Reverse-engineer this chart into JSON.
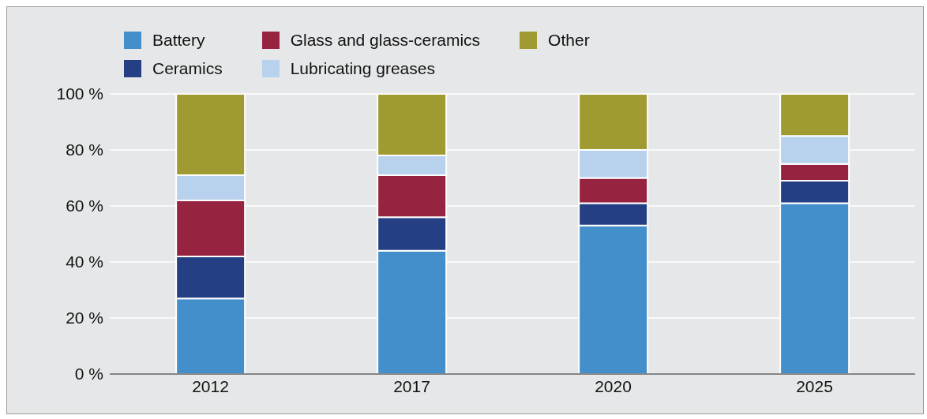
{
  "chart_data": {
    "type": "bar",
    "stacked": true,
    "categories": [
      "2012",
      "2017",
      "2020",
      "2025"
    ],
    "series": [
      {
        "name": "Battery",
        "color": "#438fcb",
        "values": [
          27,
          44,
          53,
          61
        ]
      },
      {
        "name": "Ceramics",
        "color": "#253f85",
        "values": [
          15,
          12,
          8,
          8
        ]
      },
      {
        "name": "Glass and glass-ceramics",
        "color": "#962340",
        "values": [
          20,
          15,
          9,
          6
        ]
      },
      {
        "name": "Lubricating greases",
        "color": "#b8d1ec",
        "values": [
          9,
          7,
          10,
          10
        ]
      },
      {
        "name": "Other",
        "color": "#a09a32",
        "values": [
          29,
          22,
          20,
          15
        ]
      }
    ],
    "ylim": [
      0,
      100
    ],
    "yticks": [
      {
        "value": 0,
        "label": "0 %"
      },
      {
        "value": 20,
        "label": "20 %"
      },
      {
        "value": 40,
        "label": "40 %"
      },
      {
        "value": 60,
        "label": "60 %"
      },
      {
        "value": 80,
        "label": "80 %"
      },
      {
        "value": 100,
        "label": "100 %"
      }
    ],
    "grid": "y",
    "legend": "top left"
  }
}
